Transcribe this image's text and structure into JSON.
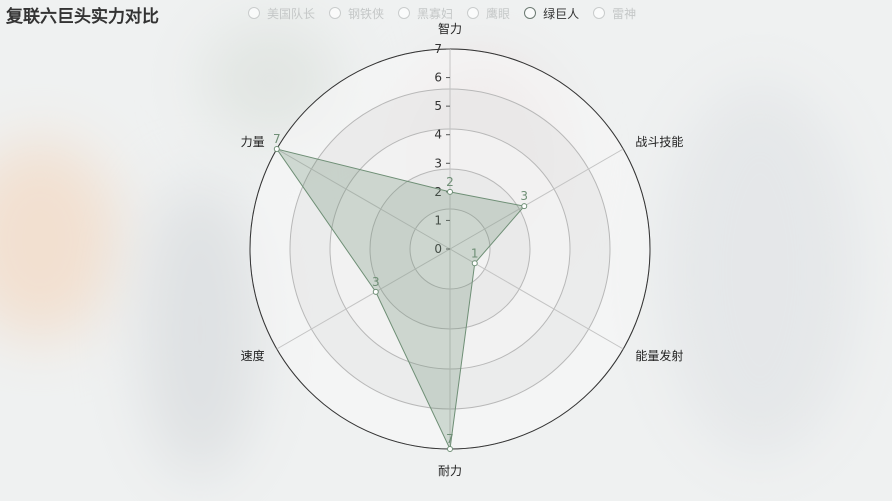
{
  "title": "复联六巨头实力对比",
  "legend": {
    "items": [
      {
        "label": "美国队长",
        "active": false
      },
      {
        "label": "钢铁侠",
        "active": false
      },
      {
        "label": "黑寡妇",
        "active": false
      },
      {
        "label": "鹰眼",
        "active": false
      },
      {
        "label": "绿巨人",
        "active": true
      },
      {
        "label": "雷神",
        "active": false
      }
    ]
  },
  "chart_data": {
    "type": "radar",
    "indicators": [
      "智力",
      "战斗技能",
      "能量发射",
      "耐力",
      "速度",
      "力量"
    ],
    "max": 7,
    "radial_ticks": [
      0,
      1,
      2,
      3,
      4,
      5,
      6,
      7
    ],
    "series": [
      {
        "name": "绿巨人",
        "values": [
          2,
          3,
          1,
          7,
          3,
          7
        ],
        "color": "#6f8f76"
      }
    ]
  },
  "colors": {
    "series_line": "#6f8f76",
    "split_area_light": "#f7f7f7",
    "split_area_dark": "#e4e4e4",
    "axis_line": "#333333"
  }
}
